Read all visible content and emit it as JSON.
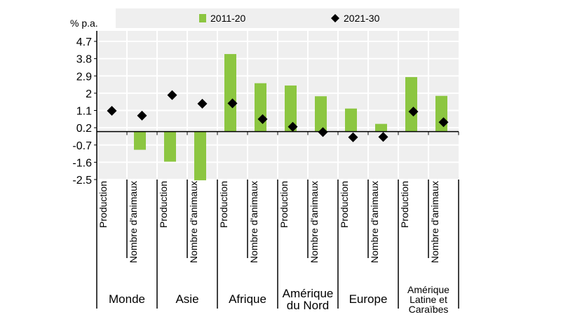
{
  "chart_data": {
    "type": "bar",
    "ylabel": "% p.a.",
    "ylim": [
      -2.5,
      4.7
    ],
    "yticks": [
      -2.5,
      -1.6,
      -0.7,
      0.2,
      1.1,
      2,
      2.9,
      3.8,
      4.7
    ],
    "ytick_labels": [
      "-2.5",
      "-1.6",
      "-0.7",
      "0.2",
      "1.1",
      "2",
      "2.9",
      "3.8",
      "4.7"
    ],
    "grid": true,
    "legend_position": "top",
    "groups": [
      "Monde",
      "Asie",
      "Afrique",
      "Amérique du Nord",
      "Europe",
      "Amérique Latine et Caraïbes"
    ],
    "group_label_lines": [
      [
        "Monde"
      ],
      [
        "Asie"
      ],
      [
        "Afrique"
      ],
      [
        "Amérique",
        "du Nord"
      ],
      [
        "Europe"
      ],
      [
        "Amérique",
        "Latine et",
        "Caraïbes"
      ]
    ],
    "subcategories": [
      "Production",
      "Nombre d'animaux"
    ],
    "series": [
      {
        "name": "2011-20",
        "mark": "bar",
        "color": "#8cc641",
        "values": [
          0,
          -0.95,
          -1.57,
          -2.54,
          4.04,
          2.52,
          2.4,
          1.84,
          1.2,
          0.4,
          2.84,
          1.86
        ]
      },
      {
        "name": "2021-30",
        "mark": "diamond",
        "color": "#000000",
        "values": [
          1.08,
          0.83,
          1.9,
          1.45,
          1.47,
          0.65,
          0.25,
          -0.03,
          -0.3,
          -0.28,
          1.04,
          0.49
        ]
      }
    ]
  }
}
